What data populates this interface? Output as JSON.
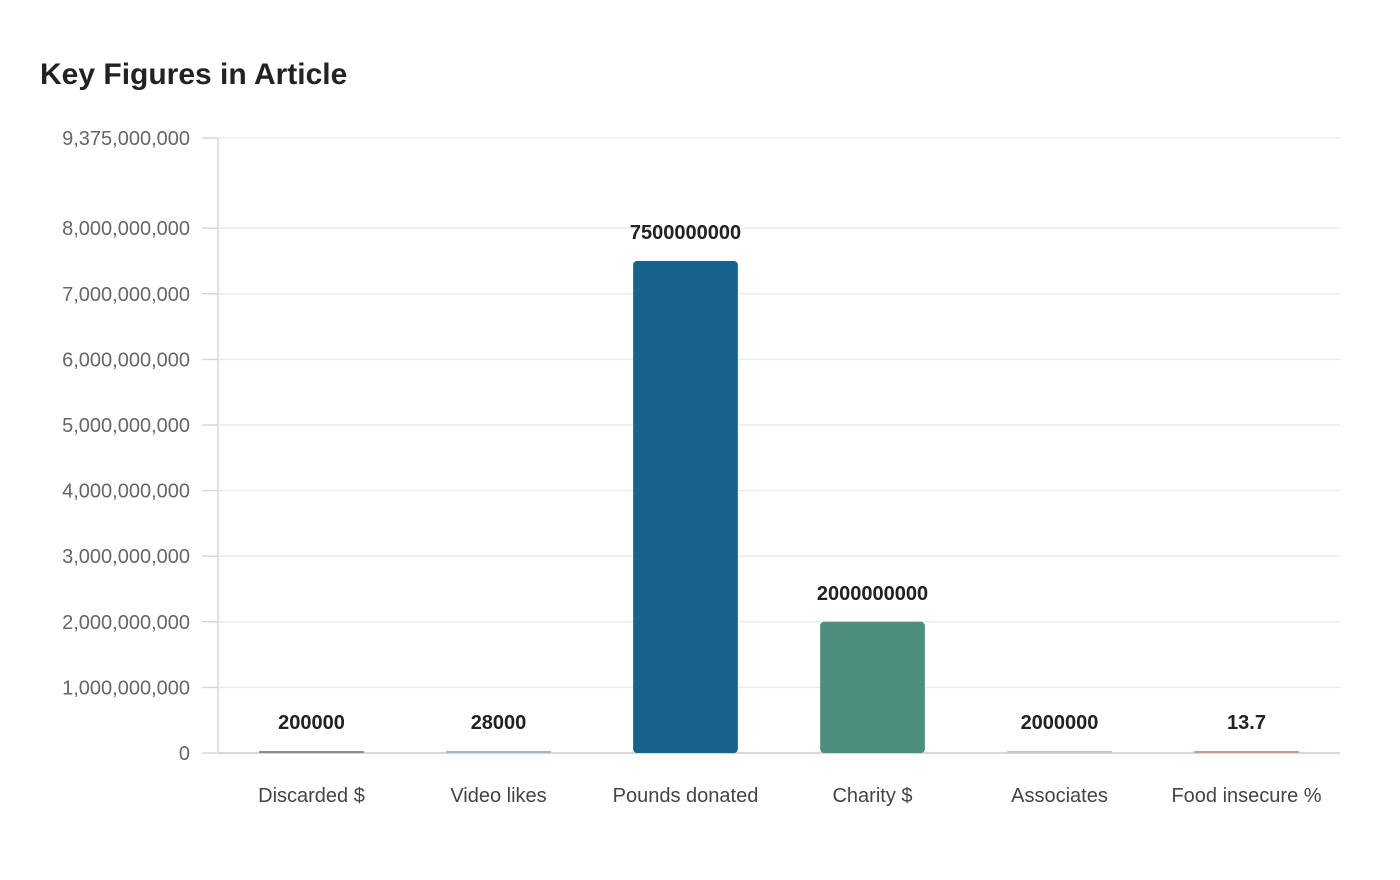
{
  "chart_data": {
    "type": "bar",
    "title": "Key Figures in Article",
    "xlabel": "",
    "ylabel": "",
    "categories": [
      "Discarded $",
      "Video likes",
      "Pounds donated",
      "Charity $",
      "Associates",
      "Food insecure %"
    ],
    "values": [
      200000,
      28000,
      7500000000,
      2000000000,
      2000000,
      13.7
    ],
    "data_labels": [
      "200000",
      "28000",
      "7500000000",
      "2000000000",
      "2000000",
      "13.7"
    ],
    "colors": [
      "#8a8a8a",
      "#9db8c8",
      "#176389",
      "#4e8e7c",
      "#c4c4c4",
      "#d4958f"
    ],
    "ylim": [
      0,
      9375000000
    ],
    "yticks": [
      0,
      1000000000,
      2000000000,
      3000000000,
      4000000000,
      5000000000,
      6000000000,
      7000000000,
      8000000000,
      9375000000
    ],
    "ytick_labels": [
      "0",
      "1,000,000,000",
      "2,000,000,000",
      "3,000,000,000",
      "4,000,000,000",
      "5,000,000,000",
      "6,000,000,000",
      "7,000,000,000",
      "8,000,000,000",
      "9,375,000,000"
    ],
    "grid": true,
    "legend": "none"
  }
}
